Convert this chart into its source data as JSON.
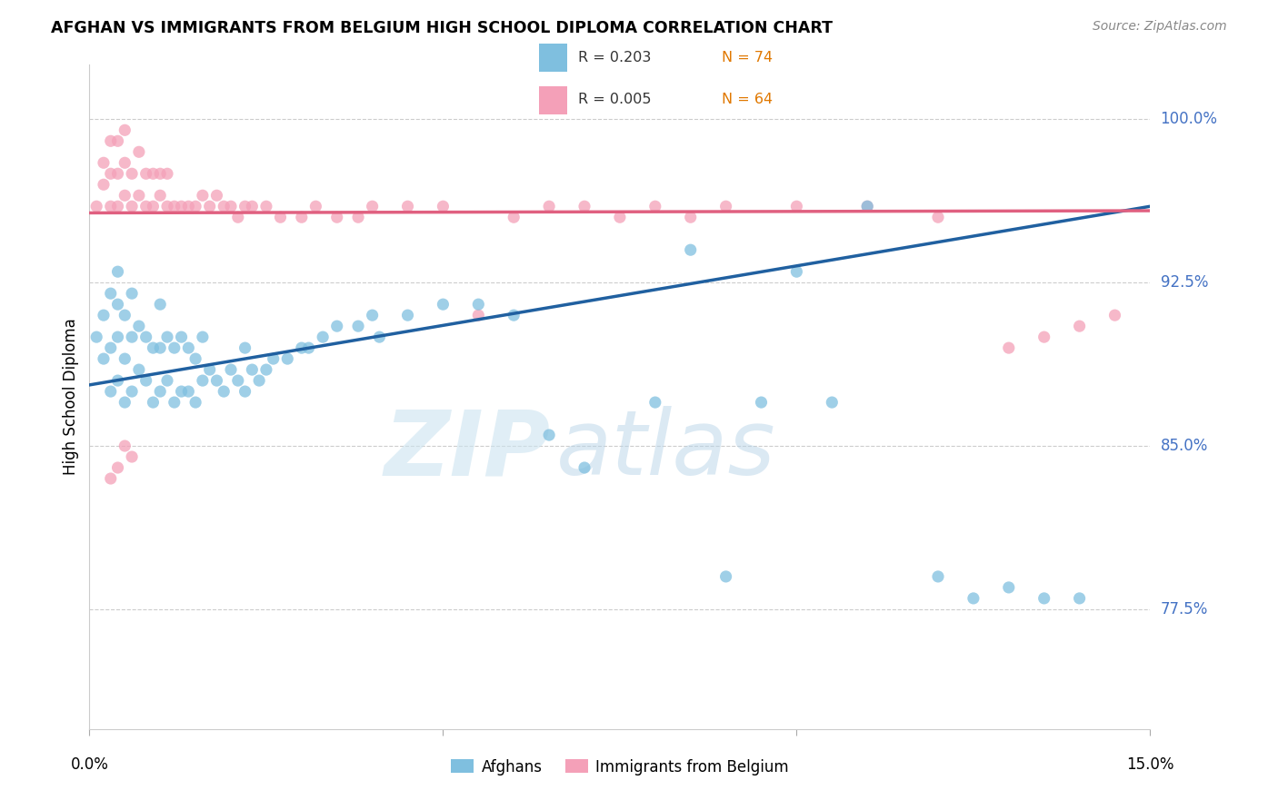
{
  "title": "AFGHAN VS IMMIGRANTS FROM BELGIUM HIGH SCHOOL DIPLOMA CORRELATION CHART",
  "source": "Source: ZipAtlas.com",
  "ylabel": "High School Diploma",
  "ytick_labels": [
    "100.0%",
    "92.5%",
    "85.0%",
    "77.5%"
  ],
  "ytick_values": [
    1.0,
    0.925,
    0.85,
    0.775
  ],
  "xmin": 0.0,
  "xmax": 0.15,
  "ymin": 0.72,
  "ymax": 1.025,
  "color_afghan": "#7fbfdf",
  "color_belgium": "#f4a0b8",
  "color_line_afghan": "#2060a0",
  "color_line_belgium": "#e06080",
  "watermark_zip": "ZIP",
  "watermark_atlas": "atlas",
  "scatter_afghan_x": [
    0.001,
    0.002,
    0.002,
    0.003,
    0.003,
    0.003,
    0.004,
    0.004,
    0.004,
    0.004,
    0.005,
    0.005,
    0.005,
    0.006,
    0.006,
    0.006,
    0.007,
    0.007,
    0.008,
    0.008,
    0.009,
    0.009,
    0.01,
    0.01,
    0.01,
    0.011,
    0.011,
    0.012,
    0.012,
    0.013,
    0.013,
    0.014,
    0.014,
    0.015,
    0.015,
    0.016,
    0.016,
    0.017,
    0.018,
    0.019,
    0.02,
    0.021,
    0.022,
    0.022,
    0.023,
    0.024,
    0.025,
    0.026,
    0.028,
    0.03,
    0.031,
    0.033,
    0.035,
    0.038,
    0.04,
    0.041,
    0.045,
    0.05,
    0.055,
    0.06,
    0.065,
    0.07,
    0.08,
    0.085,
    0.09,
    0.095,
    0.1,
    0.105,
    0.11,
    0.12,
    0.125,
    0.13,
    0.135,
    0.14
  ],
  "scatter_afghan_y": [
    0.9,
    0.89,
    0.91,
    0.875,
    0.895,
    0.92,
    0.88,
    0.9,
    0.915,
    0.93,
    0.87,
    0.89,
    0.91,
    0.875,
    0.9,
    0.92,
    0.885,
    0.905,
    0.88,
    0.9,
    0.87,
    0.895,
    0.875,
    0.895,
    0.915,
    0.88,
    0.9,
    0.87,
    0.895,
    0.875,
    0.9,
    0.875,
    0.895,
    0.87,
    0.89,
    0.88,
    0.9,
    0.885,
    0.88,
    0.875,
    0.885,
    0.88,
    0.875,
    0.895,
    0.885,
    0.88,
    0.885,
    0.89,
    0.89,
    0.895,
    0.895,
    0.9,
    0.905,
    0.905,
    0.91,
    0.9,
    0.91,
    0.915,
    0.915,
    0.91,
    0.855,
    0.84,
    0.87,
    0.94,
    0.79,
    0.87,
    0.93,
    0.87,
    0.96,
    0.79,
    0.78,
    0.785,
    0.78,
    0.78
  ],
  "scatter_belgium_x": [
    0.001,
    0.002,
    0.002,
    0.003,
    0.003,
    0.003,
    0.004,
    0.004,
    0.004,
    0.005,
    0.005,
    0.005,
    0.006,
    0.006,
    0.007,
    0.007,
    0.008,
    0.008,
    0.009,
    0.009,
    0.01,
    0.01,
    0.011,
    0.011,
    0.012,
    0.013,
    0.014,
    0.015,
    0.016,
    0.017,
    0.018,
    0.019,
    0.02,
    0.021,
    0.022,
    0.023,
    0.025,
    0.027,
    0.03,
    0.032,
    0.035,
    0.038,
    0.04,
    0.045,
    0.05,
    0.055,
    0.06,
    0.065,
    0.07,
    0.075,
    0.08,
    0.085,
    0.09,
    0.1,
    0.11,
    0.12,
    0.13,
    0.135,
    0.14,
    0.145,
    0.003,
    0.004,
    0.005,
    0.006
  ],
  "scatter_belgium_y": [
    0.96,
    0.97,
    0.98,
    0.96,
    0.975,
    0.99,
    0.96,
    0.975,
    0.99,
    0.965,
    0.98,
    0.995,
    0.96,
    0.975,
    0.965,
    0.985,
    0.96,
    0.975,
    0.96,
    0.975,
    0.965,
    0.975,
    0.96,
    0.975,
    0.96,
    0.96,
    0.96,
    0.96,
    0.965,
    0.96,
    0.965,
    0.96,
    0.96,
    0.955,
    0.96,
    0.96,
    0.96,
    0.955,
    0.955,
    0.96,
    0.955,
    0.955,
    0.96,
    0.96,
    0.96,
    0.91,
    0.955,
    0.96,
    0.96,
    0.955,
    0.96,
    0.955,
    0.96,
    0.96,
    0.96,
    0.955,
    0.895,
    0.9,
    0.905,
    0.91,
    0.835,
    0.84,
    0.85,
    0.845
  ],
  "line_afghan_x0": 0.0,
  "line_afghan_y0": 0.878,
  "line_afghan_x1": 0.15,
  "line_afghan_y1": 0.96,
  "line_belgium_x0": 0.0,
  "line_belgium_y0": 0.957,
  "line_belgium_x1": 0.15,
  "line_belgium_y1": 0.958
}
